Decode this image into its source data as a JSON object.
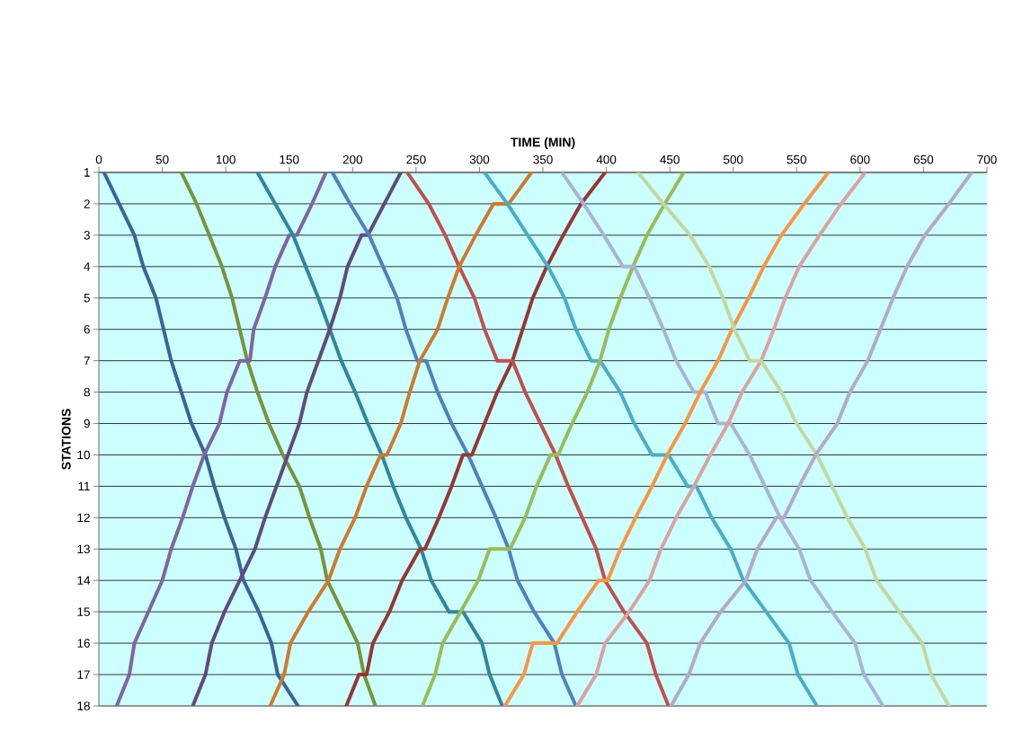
{
  "chart_data": {
    "type": "line",
    "xlabel": "TIME (MIN)",
    "ylabel": "STATIONS",
    "xlim": [
      0,
      700
    ],
    "xticks": [
      0,
      50,
      100,
      150,
      200,
      250,
      300,
      350,
      400,
      450,
      500,
      550,
      600,
      650,
      700
    ],
    "ylim": [
      18,
      1
    ],
    "yticks": [
      1,
      2,
      3,
      4,
      5,
      6,
      7,
      8,
      9,
      10,
      11,
      12,
      13,
      14,
      15,
      16,
      17,
      18
    ],
    "grid": "y",
    "marker": "none",
    "line_style": "solid",
    "series": [
      {
        "color": "#3a6496",
        "x": [
          4,
          16,
          28,
          35,
          45,
          51,
          57,
          65,
          73,
          84,
          91,
          99,
          108,
          114,
          126,
          136,
          141,
          157
        ],
        "values": [
          1,
          2,
          3,
          4,
          5,
          6,
          7,
          8,
          9,
          10,
          11,
          12,
          13,
          14,
          15,
          16,
          17,
          18
        ]
      },
      {
        "color": "#77933c",
        "x": [
          65,
          77,
          87,
          97,
          105,
          111,
          117,
          125,
          134,
          145,
          158,
          166,
          175,
          180,
          192,
          204,
          209,
          218
        ],
        "values": [
          1,
          2,
          3,
          4,
          5,
          6,
          7,
          8,
          9,
          10,
          11,
          12,
          13,
          14,
          15,
          16,
          17,
          18
        ]
      },
      {
        "color": "#8064a2",
        "x": [
          14,
          24,
          28,
          39,
          50,
          57,
          66,
          74,
          83,
          95,
          101,
          111,
          119,
          122,
          131,
          139,
          150,
          156,
          168,
          179
        ],
        "values": [
          18,
          17,
          16,
          15,
          14,
          13,
          12,
          11,
          10,
          9,
          8,
          7,
          7,
          6,
          5,
          4,
          3,
          3,
          2,
          1
        ]
      },
      {
        "color": "#31859c",
        "x": [
          125,
          139,
          153,
          163,
          173,
          182,
          191,
          202,
          212,
          223,
          232,
          242,
          254,
          262,
          276,
          287,
          302,
          308,
          318
        ],
        "values": [
          1,
          2,
          3,
          4,
          5,
          6,
          7,
          8,
          9,
          10,
          11,
          12,
          13,
          14,
          15,
          15,
          16,
          17,
          18
        ]
      },
      {
        "color": "#604a7b",
        "x": [
          74,
          84,
          89,
          99,
          111,
          123,
          131,
          140,
          149,
          158,
          164,
          173,
          182,
          190,
          196,
          207,
          212,
          225,
          238
        ],
        "values": [
          18,
          17,
          16,
          15,
          14,
          13,
          12,
          11,
          10,
          9,
          8,
          7,
          6,
          5,
          4,
          3,
          3,
          2,
          1
        ]
      },
      {
        "color": "#4f81bd",
        "x": [
          184,
          198,
          213,
          224,
          235,
          242,
          251,
          258,
          267,
          278,
          291,
          302,
          313,
          323,
          330,
          343,
          359,
          365,
          376
        ],
        "values": [
          1,
          2,
          3,
          4,
          5,
          6,
          7,
          7,
          8,
          9,
          10,
          11,
          12,
          13,
          14,
          15,
          16,
          17,
          18
        ]
      },
      {
        "color": "#953735",
        "x": [
          195,
          205,
          211,
          216,
          229,
          239,
          253,
          257,
          268,
          278,
          287,
          294,
          304,
          314,
          326,
          334,
          342,
          353,
          366,
          380,
          399
        ],
        "values": [
          18,
          17,
          17,
          16,
          15,
          14,
          13,
          13,
          12,
          11,
          10,
          10,
          9,
          8,
          7,
          6,
          5,
          4,
          3,
          2,
          1
        ]
      },
      {
        "color": "#c0504d",
        "x": [
          243,
          260,
          273,
          284,
          296,
          304,
          314,
          326,
          336,
          348,
          360,
          370,
          381,
          392,
          399,
          414,
          432,
          439,
          449
        ],
        "values": [
          1,
          2,
          3,
          4,
          5,
          6,
          7,
          7,
          8,
          9,
          10,
          11,
          12,
          13,
          14,
          15,
          16,
          17,
          18
        ]
      },
      {
        "color": "#cf7a30",
        "x": [
          135,
          146,
          151,
          165,
          181,
          190,
          202,
          211,
          222,
          227,
          238,
          245,
          253,
          267,
          275,
          284,
          297,
          311,
          323,
          341
        ],
        "values": [
          18,
          17,
          16,
          15,
          14,
          13,
          12,
          11,
          10,
          10,
          9,
          8,
          7,
          6,
          5,
          4,
          3,
          2,
          2,
          1
        ]
      },
      {
        "color": "#4bacc6",
        "x": [
          304,
          322,
          338,
          354,
          367,
          376,
          388,
          395,
          411,
          422,
          436,
          449,
          464,
          471,
          483,
          498,
          508,
          526,
          544,
          551,
          566
        ],
        "values": [
          1,
          2,
          3,
          4,
          5,
          6,
          7,
          7,
          8,
          9,
          10,
          10,
          11,
          11,
          12,
          13,
          14,
          15,
          16,
          17,
          18
        ]
      },
      {
        "color": "#9bbb59",
        "x": [
          255,
          265,
          271,
          285,
          299,
          308,
          324,
          336,
          345,
          356,
          362,
          373,
          385,
          395,
          402,
          411,
          421,
          432,
          446,
          461
        ],
        "values": [
          18,
          17,
          16,
          15,
          14,
          13,
          13,
          12,
          11,
          10,
          10,
          9,
          8,
          7,
          6,
          5,
          4,
          3,
          2,
          1
        ]
      },
      {
        "color": "#a9b4d3",
        "x": [
          365,
          382,
          398,
          413,
          422,
          434,
          445,
          455,
          469,
          478,
          488,
          498,
          513,
          525,
          537,
          552,
          561,
          578,
          596,
          603,
          618
        ],
        "values": [
          1,
          2,
          3,
          4,
          4,
          5,
          6,
          7,
          8,
          8,
          9,
          9,
          10,
          11,
          12,
          13,
          14,
          15,
          16,
          17,
          18
        ]
      },
      {
        "color": "#f79646",
        "x": [
          320,
          335,
          342,
          361,
          377,
          394,
          401,
          411,
          423,
          436,
          448,
          462,
          474,
          488,
          499,
          512,
          524,
          538,
          556,
          575
        ],
        "values": [
          18,
          17,
          16,
          16,
          15,
          14,
          14,
          13,
          12,
          11,
          10,
          9,
          8,
          7,
          6,
          5,
          4,
          3,
          2,
          1
        ]
      },
      {
        "color": "#d9a3a2",
        "x": [
          377,
          392,
          399,
          418,
          434,
          443,
          455,
          469,
          482,
          496,
          507,
          522,
          532,
          541,
          552,
          568,
          585,
          604
        ],
        "values": [
          18,
          17,
          16,
          15,
          14,
          13,
          12,
          11,
          10,
          9,
          8,
          7,
          6,
          5,
          4,
          3,
          2,
          1
        ]
      },
      {
        "color": "#c4d7a0",
        "x": [
          425,
          445,
          466,
          481,
          492,
          501,
          513,
          522,
          538,
          550,
          566,
          578,
          590,
          604,
          613,
          631,
          649,
          656,
          670
        ],
        "values": [
          1,
          2,
          3,
          4,
          5,
          6,
          7,
          7,
          8,
          9,
          10,
          11,
          12,
          13,
          14,
          15,
          16,
          17,
          18
        ]
      },
      {
        "color": "#b3a9c8",
        "x": [
          451,
          465,
          474,
          490,
          510,
          519,
          534,
          540,
          552,
          565,
          582,
          592,
          606,
          616,
          626,
          637,
          651,
          670,
          688
        ],
        "values": [
          18,
          17,
          16,
          15,
          14,
          13,
          12,
          12,
          11,
          10,
          9,
          8,
          7,
          6,
          5,
          4,
          3,
          2,
          1
        ]
      }
    ]
  }
}
